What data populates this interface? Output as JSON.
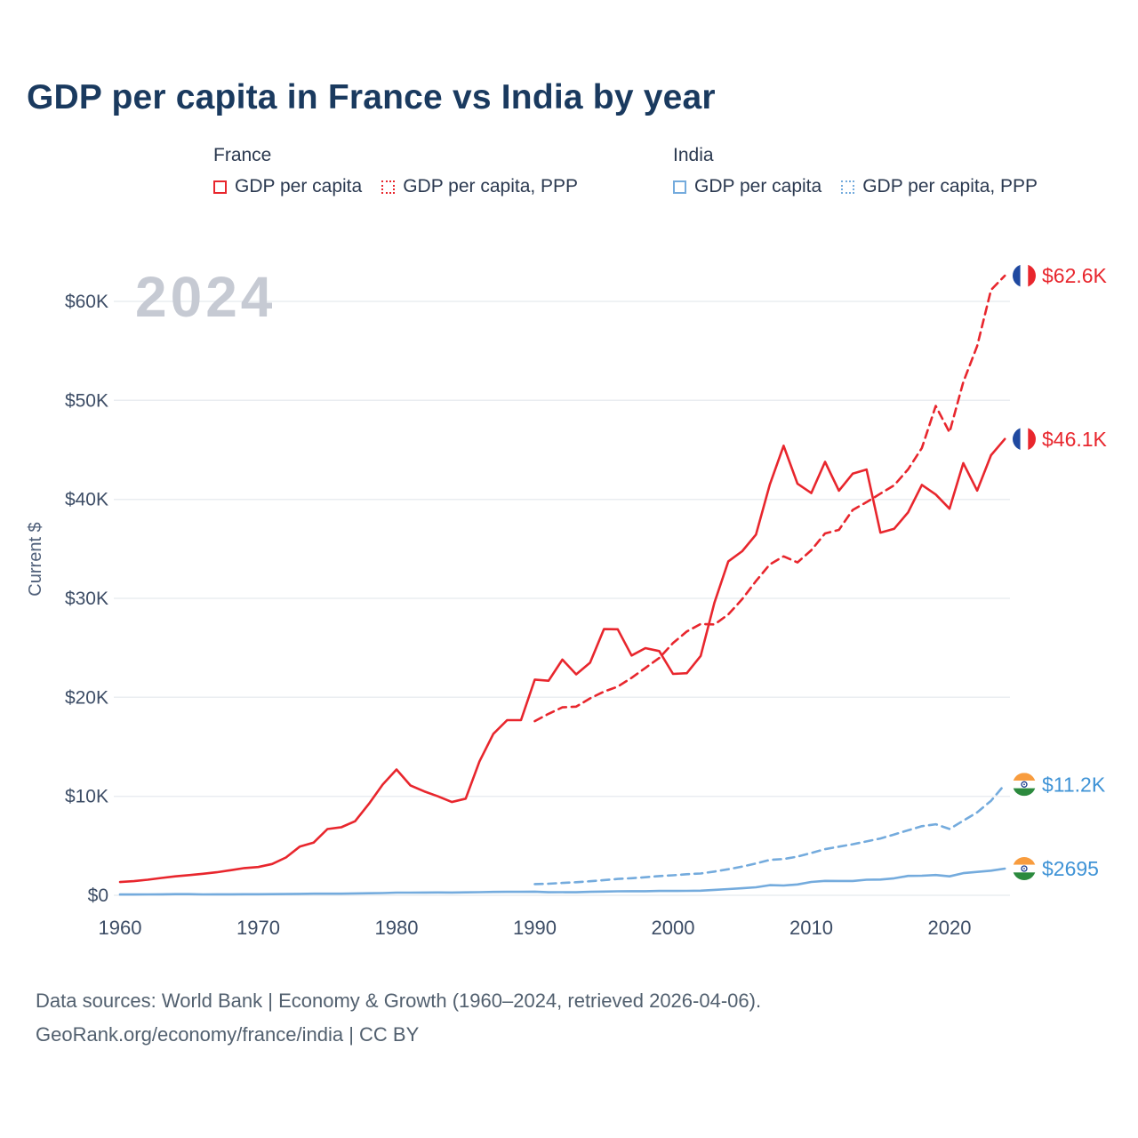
{
  "title": "GDP per capita in France vs India by year",
  "legend": {
    "groups": [
      {
        "label": "France",
        "items": [
          {
            "label": "GDP per capita",
            "style": "solid",
            "color": "#e8262d"
          },
          {
            "label": "GDP per capita, PPP",
            "style": "dotted",
            "color": "#e8262d"
          }
        ]
      },
      {
        "label": "India",
        "items": [
          {
            "label": "GDP per capita",
            "style": "solid",
            "color": "#74abdd"
          },
          {
            "label": "GDP per capita, PPP",
            "style": "dotted",
            "color": "#74abdd"
          }
        ]
      }
    ]
  },
  "footer": {
    "line1": "Data sources: World Bank | Economy & Growth (1960–2024, retrieved 2026-04-06).",
    "line2": "GeoRank.org/economy/france/india | CC BY"
  },
  "chart_data": {
    "type": "line",
    "title": "GDP per capita in France vs India by year",
    "xlabel": "",
    "ylabel": "Current $",
    "watermark": "2024",
    "grid": true,
    "legend_position": "top",
    "xlim": [
      1960,
      2024
    ],
    "ylim": [
      0,
      64000
    ],
    "x_ticks": [
      1960,
      1970,
      1980,
      1990,
      2000,
      2010,
      2020
    ],
    "y_ticks": [
      {
        "value": 0,
        "label": "$0"
      },
      {
        "value": 10000,
        "label": "$10K"
      },
      {
        "value": 20000,
        "label": "$20K"
      },
      {
        "value": 30000,
        "label": "$30K"
      },
      {
        "value": 40000,
        "label": "$40K"
      },
      {
        "value": 50000,
        "label": "$50K"
      },
      {
        "value": 60000,
        "label": "$60K"
      }
    ],
    "series": [
      {
        "id": "france-gdp-ppp",
        "name": "France GDP per capita, PPP",
        "country": "France",
        "style": "dashed",
        "color": "#e8262d",
        "label_color": "#e8262d",
        "flag": "france",
        "end_label": "$62.6K",
        "points": [
          [
            1990,
            17597
          ],
          [
            1991,
            18333
          ],
          [
            1992,
            18989
          ],
          [
            1993,
            19060
          ],
          [
            1994,
            19893
          ],
          [
            1995,
            20578
          ],
          [
            1996,
            21077
          ],
          [
            1997,
            21970
          ],
          [
            1998,
            22966
          ],
          [
            1999,
            23976
          ],
          [
            2000,
            25478
          ],
          [
            2001,
            26654
          ],
          [
            2002,
            27406
          ],
          [
            2003,
            27362
          ],
          [
            2004,
            28375
          ],
          [
            2005,
            29922
          ],
          [
            2006,
            31740
          ],
          [
            2007,
            33428
          ],
          [
            2008,
            34236
          ],
          [
            2009,
            33632
          ],
          [
            2010,
            34863
          ],
          [
            2011,
            36556
          ],
          [
            2012,
            36917
          ],
          [
            2013,
            38930
          ],
          [
            2014,
            39720
          ],
          [
            2015,
            40580
          ],
          [
            2016,
            41425
          ],
          [
            2017,
            43034
          ],
          [
            2018,
            45189
          ],
          [
            2019,
            49435
          ],
          [
            2020,
            46765
          ],
          [
            2021,
            51850
          ],
          [
            2022,
            55493
          ],
          [
            2023,
            61157
          ],
          [
            2024,
            62600
          ]
        ]
      },
      {
        "id": "france-gdp",
        "name": "France GDP per capita",
        "country": "France",
        "style": "solid",
        "color": "#e8262d",
        "label_color": "#e8262d",
        "flag": "france",
        "end_label": "$46.1K",
        "points": [
          [
            1960,
            1334
          ],
          [
            1961,
            1428
          ],
          [
            1962,
            1574
          ],
          [
            1963,
            1748
          ],
          [
            1964,
            1910
          ],
          [
            1965,
            2038
          ],
          [
            1966,
            2174
          ],
          [
            1967,
            2325
          ],
          [
            1968,
            2536
          ],
          [
            1969,
            2752
          ],
          [
            1970,
            2853
          ],
          [
            1971,
            3160
          ],
          [
            1972,
            3815
          ],
          [
            1973,
            4910
          ],
          [
            1974,
            5317
          ],
          [
            1975,
            6690
          ],
          [
            1976,
            6870
          ],
          [
            1977,
            7480
          ],
          [
            1978,
            9230
          ],
          [
            1979,
            11180
          ],
          [
            1980,
            12713
          ],
          [
            1981,
            11105
          ],
          [
            1982,
            10497
          ],
          [
            1983,
            9993
          ],
          [
            1984,
            9420
          ],
          [
            1985,
            9767
          ],
          [
            1986,
            13530
          ],
          [
            1987,
            16313
          ],
          [
            1988,
            17697
          ],
          [
            1989,
            17694
          ],
          [
            1990,
            21794
          ],
          [
            1991,
            21675
          ],
          [
            1992,
            23814
          ],
          [
            1993,
            22322
          ],
          [
            1994,
            23497
          ],
          [
            1995,
            26890
          ],
          [
            1996,
            26874
          ],
          [
            1997,
            24228
          ],
          [
            1998,
            24974
          ],
          [
            1999,
            24672
          ],
          [
            2000,
            22364
          ],
          [
            2001,
            22434
          ],
          [
            2002,
            24177
          ],
          [
            2003,
            29568
          ],
          [
            2004,
            33741
          ],
          [
            2005,
            34760
          ],
          [
            2006,
            36444
          ],
          [
            2007,
            41508
          ],
          [
            2008,
            45413
          ],
          [
            2009,
            41575
          ],
          [
            2010,
            40638
          ],
          [
            2011,
            43790
          ],
          [
            2012,
            40875
          ],
          [
            2013,
            42592
          ],
          [
            2014,
            43011
          ],
          [
            2015,
            36638
          ],
          [
            2016,
            37037
          ],
          [
            2017,
            38685
          ],
          [
            2018,
            41461
          ],
          [
            2019,
            40494
          ],
          [
            2020,
            39055
          ],
          [
            2021,
            43659
          ],
          [
            2022,
            40886
          ],
          [
            2023,
            44461
          ],
          [
            2024,
            46100
          ]
        ]
      },
      {
        "id": "india-gdp-ppp",
        "name": "India GDP per capita, PPP",
        "country": "India",
        "style": "dashed",
        "color": "#74abdd",
        "label_color": "#3f93d6",
        "flag": "india",
        "end_label": "$11.2K",
        "points": [
          [
            1990,
            1134
          ],
          [
            1991,
            1171
          ],
          [
            1992,
            1246
          ],
          [
            1993,
            1323
          ],
          [
            1994,
            1420
          ],
          [
            1995,
            1537
          ],
          [
            1996,
            1652
          ],
          [
            1997,
            1724
          ],
          [
            1998,
            1822
          ],
          [
            1999,
            1936
          ],
          [
            2000,
            2018
          ],
          [
            2001,
            2128
          ],
          [
            2002,
            2203
          ],
          [
            2003,
            2394
          ],
          [
            2004,
            2630
          ],
          [
            2005,
            2898
          ],
          [
            2006,
            3219
          ],
          [
            2007,
            3571
          ],
          [
            2008,
            3662
          ],
          [
            2009,
            3903
          ],
          [
            2010,
            4274
          ],
          [
            2011,
            4658
          ],
          [
            2012,
            4916
          ],
          [
            2013,
            5155
          ],
          [
            2014,
            5439
          ],
          [
            2015,
            5743
          ],
          [
            2016,
            6145
          ],
          [
            2017,
            6570
          ],
          [
            2018,
            6980
          ],
          [
            2019,
            7180
          ],
          [
            2020,
            6700
          ],
          [
            2021,
            7540
          ],
          [
            2022,
            8379
          ],
          [
            2023,
            9545
          ],
          [
            2024,
            11200
          ]
        ]
      },
      {
        "id": "india-gdp",
        "name": "India GDP per capita",
        "country": "India",
        "style": "solid",
        "color": "#74abdd",
        "label_color": "#3f93d6",
        "flag": "india",
        "end_label": "$2695",
        "points": [
          [
            1960,
            82
          ],
          [
            1961,
            85
          ],
          [
            1962,
            89
          ],
          [
            1963,
            101
          ],
          [
            1964,
            115
          ],
          [
            1965,
            119
          ],
          [
            1966,
            89
          ],
          [
            1967,
            96
          ],
          [
            1968,
            99
          ],
          [
            1969,
            107
          ],
          [
            1970,
            112
          ],
          [
            1971,
            118
          ],
          [
            1972,
            122
          ],
          [
            1973,
            143
          ],
          [
            1974,
            163
          ],
          [
            1975,
            158
          ],
          [
            1976,
            161
          ],
          [
            1977,
            186
          ],
          [
            1978,
            206
          ],
          [
            1979,
            224
          ],
          [
            1980,
            266
          ],
          [
            1981,
            270
          ],
          [
            1982,
            274
          ],
          [
            1983,
            291
          ],
          [
            1984,
            277
          ],
          [
            1985,
            296
          ],
          [
            1986,
            310
          ],
          [
            1987,
            340
          ],
          [
            1988,
            354
          ],
          [
            1989,
            346
          ],
          [
            1990,
            367
          ],
          [
            1991,
            303
          ],
          [
            1992,
            317
          ],
          [
            1993,
            301
          ],
          [
            1994,
            346
          ],
          [
            1995,
            373
          ],
          [
            1996,
            400
          ],
          [
            1997,
            415
          ],
          [
            1998,
            413
          ],
          [
            1999,
            441
          ],
          [
            2000,
            443
          ],
          [
            2001,
            449
          ],
          [
            2002,
            470
          ],
          [
            2003,
            546
          ],
          [
            2004,
            627
          ],
          [
            2005,
            710
          ],
          [
            2006,
            806
          ],
          [
            2007,
            1022
          ],
          [
            2008,
            991
          ],
          [
            2009,
            1096
          ],
          [
            2010,
            1350
          ],
          [
            2011,
            1458
          ],
          [
            2012,
            1444
          ],
          [
            2013,
            1450
          ],
          [
            2014,
            1574
          ],
          [
            2015,
            1590
          ],
          [
            2016,
            1714
          ],
          [
            2017,
            1957
          ],
          [
            2018,
            1974
          ],
          [
            2019,
            2050
          ],
          [
            2020,
            1913
          ],
          [
            2021,
            2238
          ],
          [
            2022,
            2366
          ],
          [
            2023,
            2485
          ],
          [
            2024,
            2695
          ]
        ]
      }
    ]
  }
}
